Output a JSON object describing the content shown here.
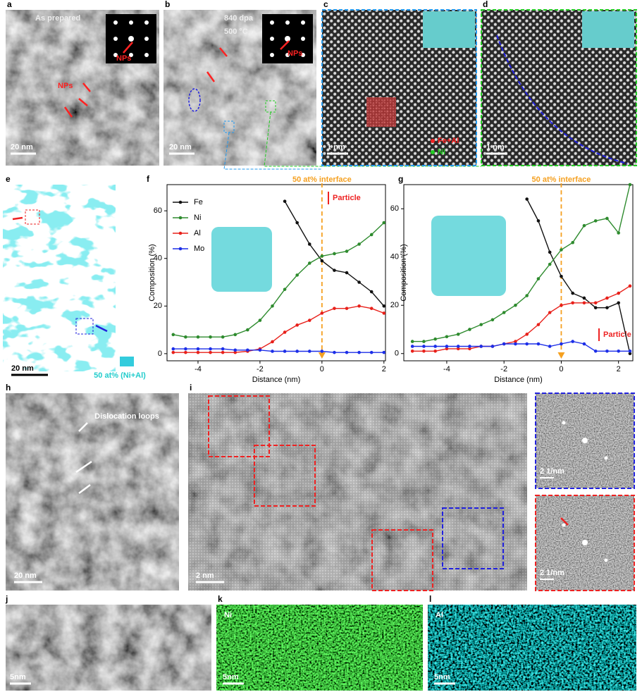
{
  "images": [
    {
      "label": "a",
      "texts": [
        "As prepared",
        "NPs",
        "NPs"
      ],
      "scale_bar": "20 nm"
    },
    {
      "label": "b",
      "texts": [
        "840 dpa",
        "500 °C",
        "NPs"
      ],
      "scale_bar": "20 nm"
    },
    {
      "label": "c",
      "texts": [
        "Fe+Al",
        "Ni"
      ],
      "scale_bar": "1 nm"
    },
    {
      "label": "d",
      "scale_bar": "1 nm"
    },
    {
      "label": "e",
      "texts": [
        "50 at% (Ni+Al)"
      ],
      "scale_bar": "20 nm"
    },
    {
      "label": "h",
      "texts": [
        "Dislocation loops"
      ],
      "scale_bar": "20 nm"
    },
    {
      "label": "i",
      "scale_bar": "2 nm"
    },
    {
      "label": "j",
      "scale_bar": "5nm"
    },
    {
      "label": "k",
      "texts": [
        "Ni"
      ],
      "scale_bar": "5nm"
    },
    {
      "label": "l",
      "texts": [
        "Al"
      ],
      "scale_bar": "5nm"
    }
  ],
  "fft_scale_bars": [
    "2 1/nm",
    "2 1/nm"
  ],
  "chart_data": [
    {
      "type": "line",
      "label": "f",
      "annotations": [
        "50 at% interface",
        "Particle"
      ],
      "xlabel": "Distance (nm)",
      "ylabel": "Composition (%)",
      "legend": "upper left",
      "vline": 0,
      "xlim": [
        -5,
        2.05
      ],
      "ylim": [
        -3,
        71
      ],
      "xticks": [
        -4,
        -2,
        0,
        2
      ],
      "yticks": [
        0,
        20,
        40,
        60
      ],
      "x": [
        -4.8,
        -4.4,
        -4.0,
        -3.6,
        -3.2,
        -2.8,
        -2.4,
        -2.0,
        -1.6,
        -1.2,
        -0.8,
        -0.4,
        0,
        0.4,
        0.8,
        1.2,
        1.6,
        2.0
      ],
      "series": [
        {
          "name": "Fe",
          "color": "#111111",
          "values": [
            null,
            null,
            null,
            null,
            null,
            null,
            null,
            null,
            null,
            64,
            55,
            46,
            39,
            35,
            34,
            30,
            26,
            20
          ]
        },
        {
          "name": "Ni",
          "color": "#2e8b2e",
          "values": [
            8,
            7,
            7,
            7,
            7,
            8,
            10,
            14,
            20,
            27,
            33,
            38,
            41,
            42,
            43,
            46,
            50,
            55
          ]
        },
        {
          "name": "Al",
          "color": "#e8201a",
          "values": [
            0.5,
            0.5,
            0.5,
            0.5,
            0.5,
            0.5,
            1,
            2,
            5,
            9,
            12,
            14,
            17,
            19,
            19,
            20,
            19,
            17
          ]
        },
        {
          "name": "Mo",
          "color": "#1c2ee8",
          "values": [
            2,
            2,
            2,
            2,
            2,
            1.5,
            1.5,
            1.5,
            1,
            1,
            1,
            1,
            1,
            0.5,
            0.5,
            0.5,
            0.5,
            0.5
          ]
        }
      ]
    },
    {
      "type": "line",
      "label": "g",
      "annotations": [
        "50 at% interface",
        "Particle"
      ],
      "xlabel": "Distance (nm)",
      "ylabel": "Composition (%)",
      "vline": 0,
      "xlim": [
        -5.5,
        2.5
      ],
      "ylim": [
        -3,
        70
      ],
      "xticks": [
        -4,
        -2,
        0,
        2
      ],
      "yticks": [
        0,
        20,
        40,
        60
      ],
      "x": [
        -5.2,
        -4.8,
        -4.4,
        -4.0,
        -3.6,
        -3.2,
        -2.8,
        -2.4,
        -2.0,
        -1.6,
        -1.2,
        -0.8,
        -0.4,
        0,
        0.4,
        0.8,
        1.2,
        1.6,
        2.0,
        2.4
      ],
      "series": [
        {
          "name": "Fe",
          "color": "#111111",
          "values": [
            null,
            null,
            null,
            null,
            null,
            null,
            null,
            null,
            null,
            null,
            64,
            55,
            42,
            32,
            25,
            23,
            19,
            19,
            21,
            0
          ]
        },
        {
          "name": "Ni",
          "color": "#2e8b2e",
          "values": [
            5,
            5,
            6,
            7,
            8,
            10,
            12,
            14,
            17,
            20,
            24,
            31,
            37,
            43,
            46,
            53,
            55,
            56,
            50,
            70
          ]
        },
        {
          "name": "Al",
          "color": "#e8201a",
          "values": [
            1,
            1,
            1,
            2,
            2,
            2,
            3,
            3,
            4,
            5,
            8,
            12,
            17,
            20,
            21,
            21,
            21,
            23,
            25,
            28
          ]
        },
        {
          "name": "Mo",
          "color": "#1c2ee8",
          "values": [
            3,
            3,
            3,
            3,
            3,
            3,
            3,
            3,
            4,
            4,
            4,
            4,
            3,
            4,
            5,
            4,
            1,
            1,
            1,
            1
          ]
        }
      ]
    }
  ]
}
